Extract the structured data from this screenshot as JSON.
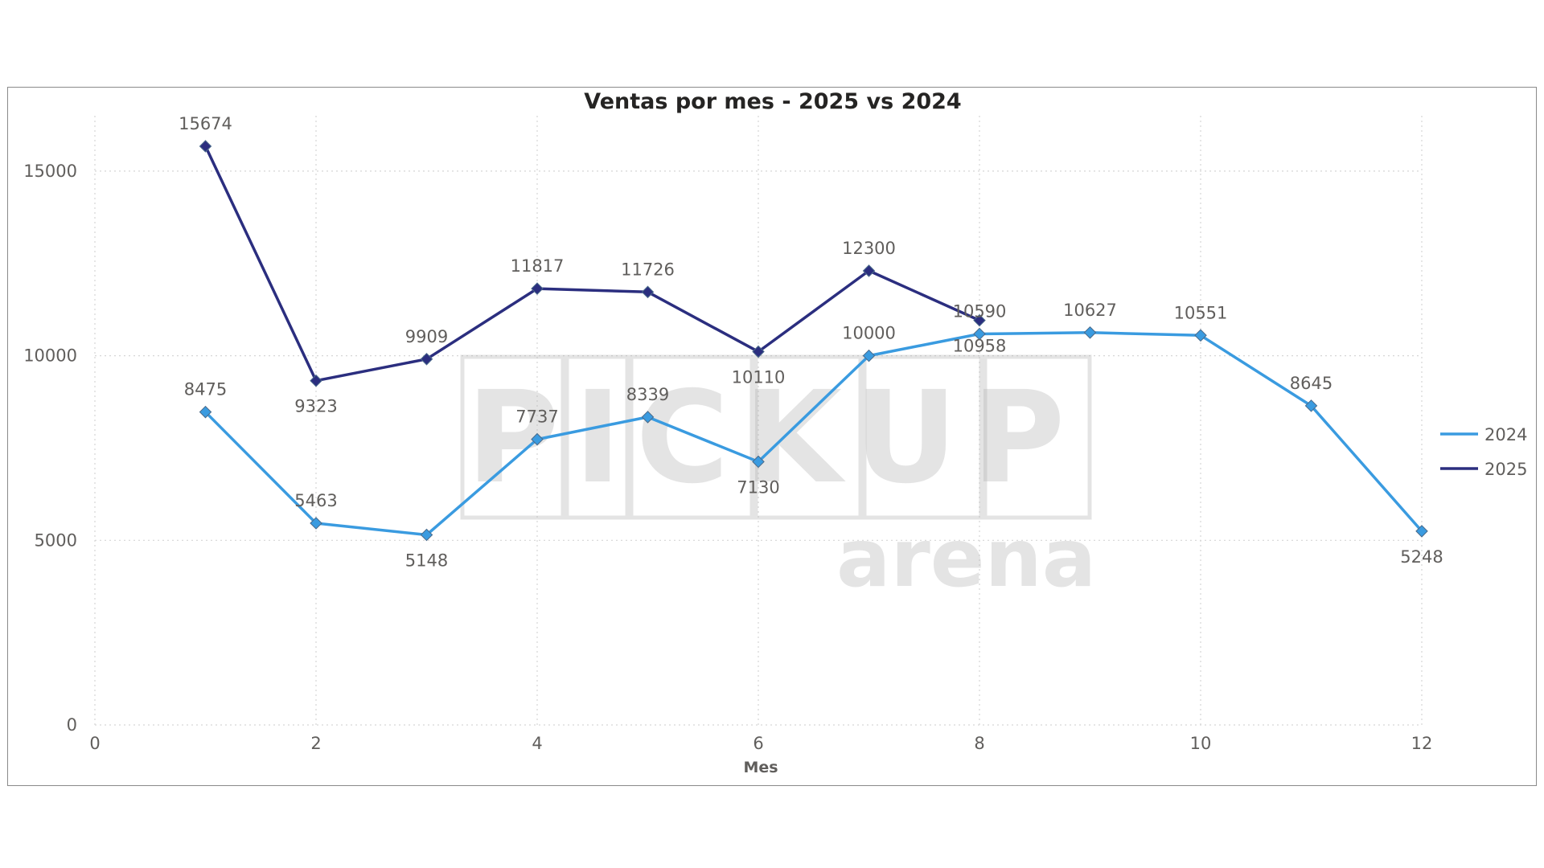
{
  "watermark": {
    "line1": "PICKUP",
    "line2": "arena"
  },
  "chart_data": {
    "type": "line",
    "title": "Ventas por mes - 2025 vs 2024",
    "xlabel": "Mes",
    "ylabel": "",
    "xlim": [
      0,
      12
    ],
    "ylim": [
      0,
      16500
    ],
    "xticks": [
      0,
      2,
      4,
      6,
      8,
      10,
      12
    ],
    "yticks": [
      0,
      5000,
      10000,
      15000
    ],
    "grid": true,
    "legend_position": "right",
    "series": [
      {
        "name": "2024",
        "color": "#3a9be0",
        "x": [
          1,
          2,
          3,
          4,
          5,
          6,
          7,
          8,
          9,
          10,
          11,
          12
        ],
        "values": [
          8475,
          5463,
          5148,
          7737,
          8339,
          7130,
          10000,
          10590,
          10627,
          10551,
          8645,
          5248
        ],
        "label_pos": [
          "above",
          "above",
          "below",
          "above",
          "above",
          "below",
          "above",
          "above",
          "above",
          "above",
          "above",
          "below"
        ]
      },
      {
        "name": "2025",
        "color": "#2b2e7f",
        "x": [
          1,
          2,
          3,
          4,
          5,
          6,
          7,
          8
        ],
        "values": [
          15674,
          9323,
          9909,
          11817,
          11726,
          10110,
          12300,
          10958
        ],
        "label_pos": [
          "above",
          "below",
          "above",
          "above",
          "above",
          "below",
          "above",
          "below"
        ]
      }
    ]
  }
}
